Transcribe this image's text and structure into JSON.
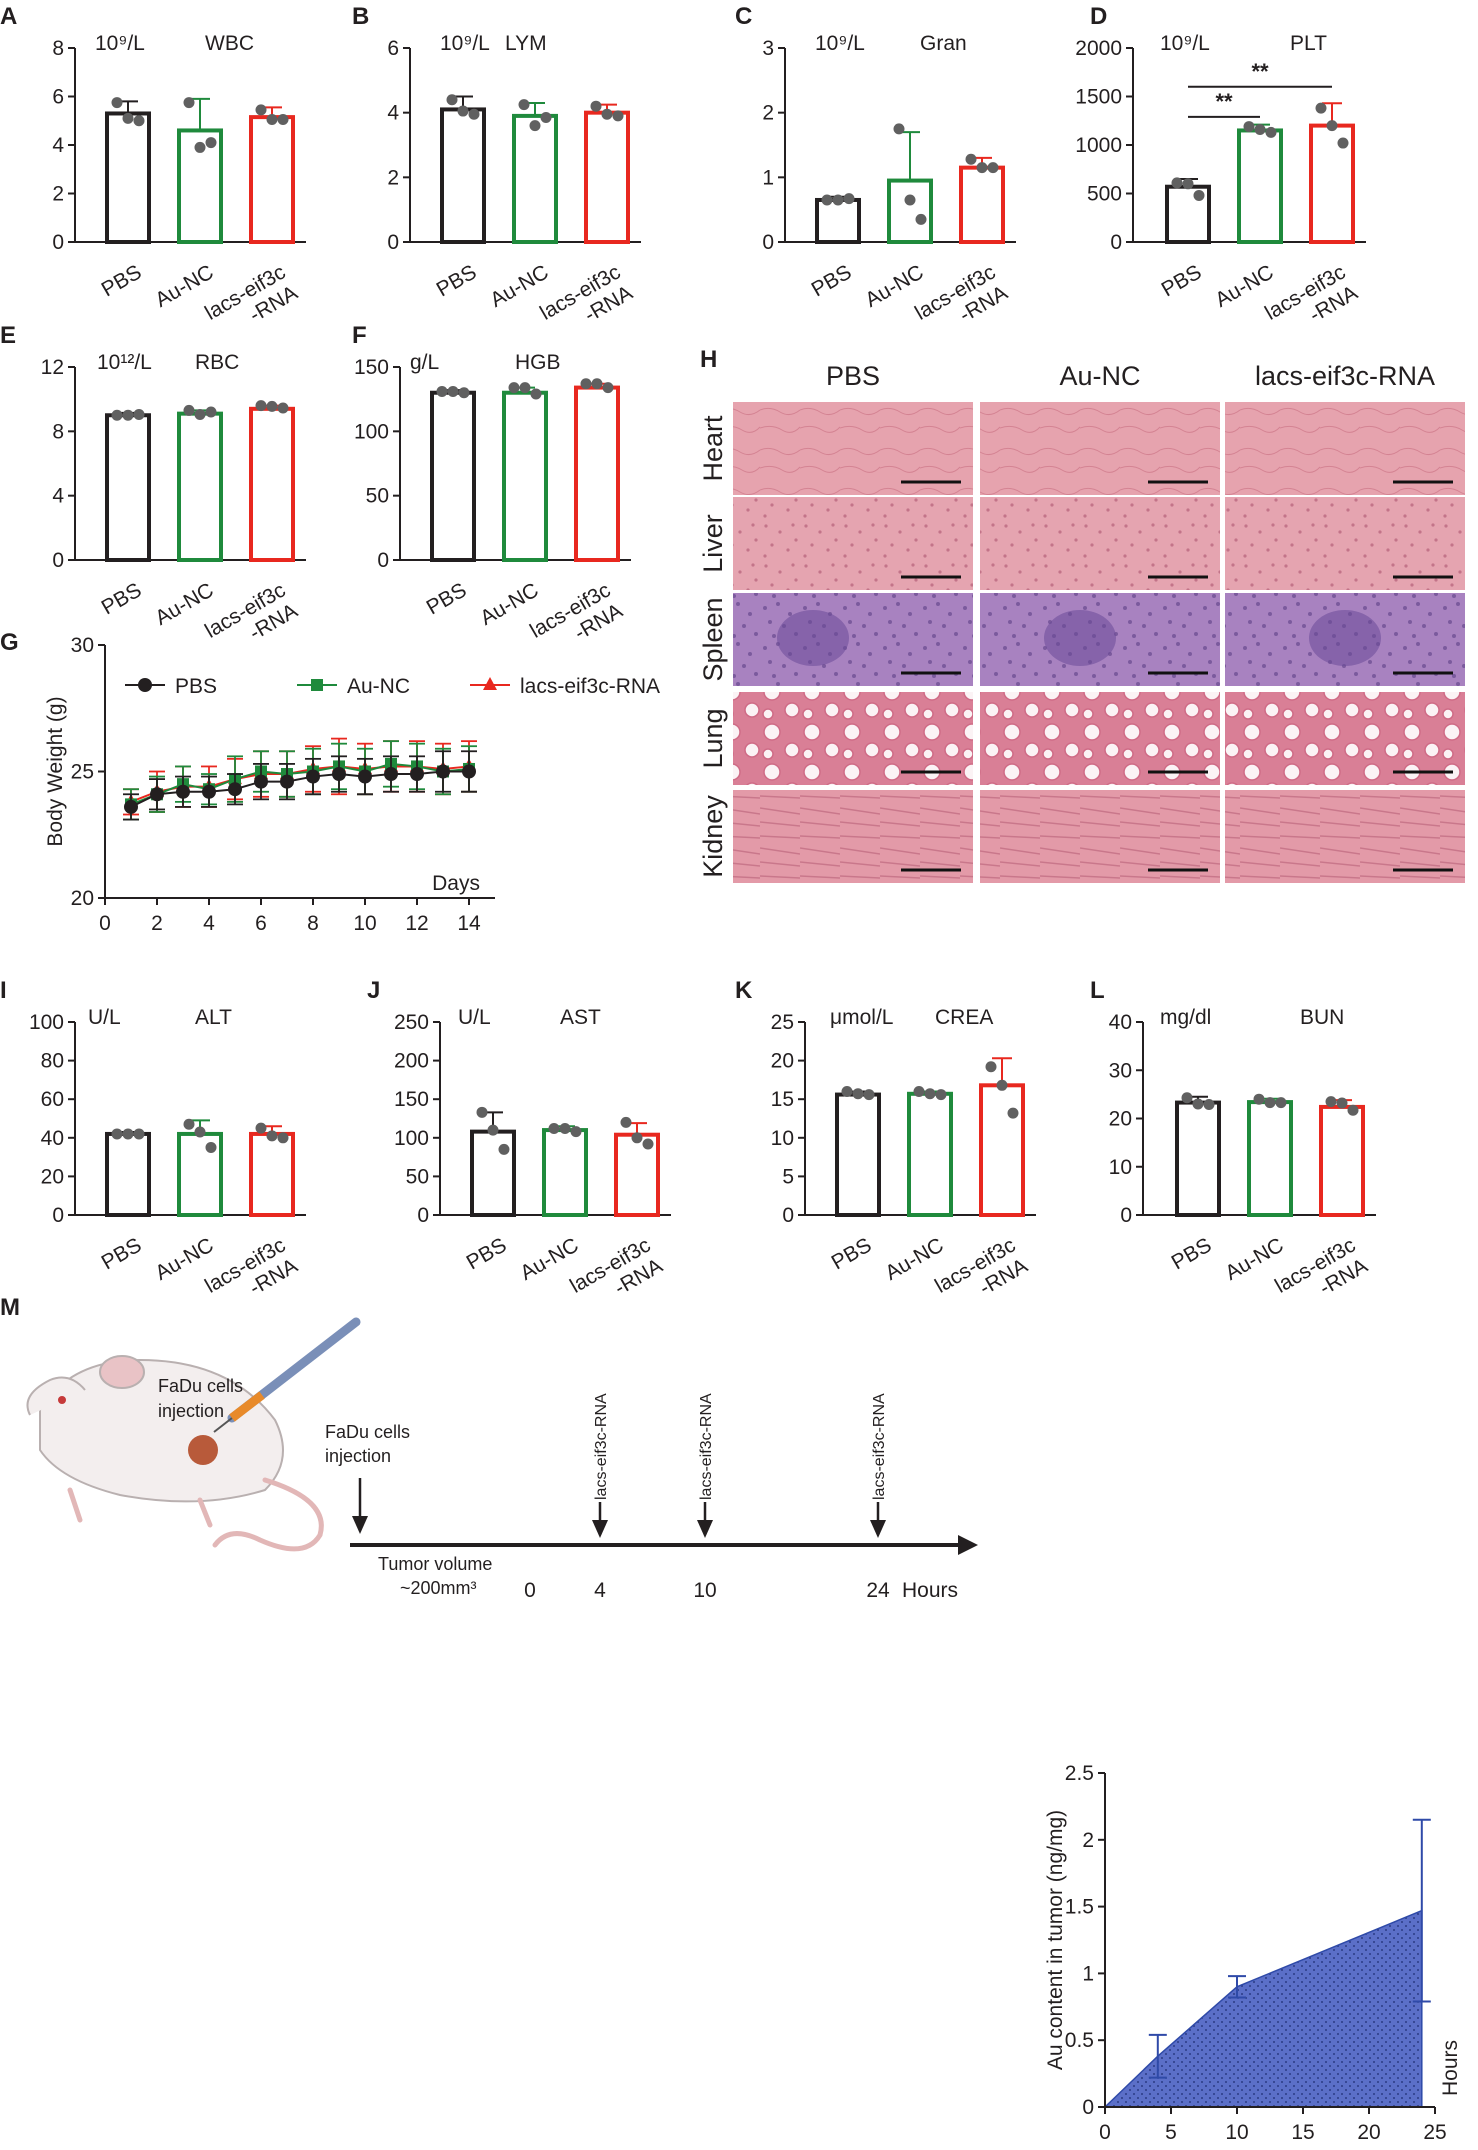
{
  "colors": {
    "pbs": "#231f20",
    "au": "#1f8a3c",
    "lacs": "#e8281f",
    "dot": "#606060",
    "area_fill": "#5b6fc8",
    "area_edge": "#2f4aa8",
    "tissue_pink": "#e9a0ad",
    "spleen_purple": "#9b78b8"
  },
  "chart_data": [
    {
      "id": "A",
      "panel": "A",
      "type": "bar",
      "unit": "10⁹/L",
      "title": "WBC",
      "categories": [
        "PBS",
        "Au-NC",
        "lacs-eif3c\n-RNA"
      ],
      "ylim": [
        0,
        8
      ],
      "yticks": [
        0,
        2,
        4,
        6,
        8
      ],
      "values": [
        5.3,
        4.6,
        5.15
      ],
      "errors": [
        0.5,
        1.3,
        0.4
      ],
      "points": [
        [
          5.75,
          5.1,
          5.0
        ],
        [
          5.75,
          3.9,
          4.1
        ],
        [
          5.45,
          5.05,
          5.05
        ]
      ]
    },
    {
      "id": "B",
      "panel": "B",
      "type": "bar",
      "unit": "10⁹/L",
      "title": "LYM",
      "categories": [
        "PBS",
        "Au-NC",
        "lacs-eif3c\n-RNA"
      ],
      "ylim": [
        0,
        6
      ],
      "yticks": [
        0,
        2,
        4,
        6
      ],
      "values": [
        4.1,
        3.9,
        4.0
      ],
      "errors": [
        0.4,
        0.4,
        0.25
      ],
      "points": [
        [
          4.4,
          4.05,
          3.95
        ],
        [
          4.25,
          3.6,
          3.85
        ],
        [
          4.2,
          3.95,
          3.9
        ]
      ]
    },
    {
      "id": "C",
      "panel": "C",
      "type": "bar",
      "unit": "10⁹/L",
      "title": "Gran",
      "categories": [
        "PBS",
        "Au-NC",
        "lacs-eif3c\n-RNA"
      ],
      "ylim": [
        0,
        3
      ],
      "yticks": [
        0,
        1,
        2,
        3
      ],
      "values": [
        0.65,
        0.95,
        1.15
      ],
      "errors": [
        0.05,
        0.75,
        0.15
      ],
      "points": [
        [
          0.65,
          0.65,
          0.67
        ],
        [
          1.75,
          0.65,
          0.35
        ],
        [
          1.28,
          1.15,
          1.15
        ]
      ]
    },
    {
      "id": "D",
      "panel": "D",
      "type": "bar",
      "unit": "10⁹/L",
      "title": "PLT",
      "categories": [
        "PBS",
        "Au-NC",
        "lacs-eif3c\n-RNA"
      ],
      "ylim": [
        0,
        2000
      ],
      "yticks": [
        0,
        500,
        1000,
        1500,
        2000
      ],
      "values": [
        570,
        1150,
        1200
      ],
      "errors": [
        80,
        60,
        230
      ],
      "points": [
        [
          610,
          600,
          480
        ],
        [
          1190,
          1160,
          1130
        ],
        [
          1380,
          1200,
          1020
        ]
      ],
      "sig": [
        {
          "from": 0,
          "to": 1,
          "label": "**",
          "y": 1290
        },
        {
          "from": 0,
          "to": 2,
          "label": "**",
          "y": 1600
        }
      ]
    },
    {
      "id": "E",
      "panel": "E",
      "type": "bar",
      "unit": "10¹²/L",
      "title": "RBC",
      "categories": [
        "PBS",
        "Au-NC",
        "lacs-eif3c\n-RNA"
      ],
      "ylim": [
        0,
        12
      ],
      "yticks": [
        0,
        4,
        8,
        12
      ],
      "values": [
        9.0,
        9.1,
        9.4
      ],
      "errors": [
        0.15,
        0.2,
        0.2
      ],
      "points": [
        [
          9.0,
          9.0,
          9.05
        ],
        [
          9.3,
          9.05,
          9.2
        ],
        [
          9.6,
          9.55,
          9.45
        ]
      ]
    },
    {
      "id": "F",
      "panel": "F",
      "type": "bar",
      "unit": "g/L",
      "title": "HGB",
      "categories": [
        "PBS",
        "Au-NC",
        "lacs-eif3c\n-RNA"
      ],
      "ylim": [
        0,
        150
      ],
      "yticks": [
        0,
        50,
        100,
        150
      ],
      "values": [
        130,
        130,
        134
      ],
      "errors": [
        2,
        4,
        3
      ],
      "points": [
        [
          131,
          131,
          130
        ],
        [
          134,
          134,
          129
        ],
        [
          137,
          137,
          134
        ]
      ]
    },
    {
      "id": "G",
      "panel": "G",
      "type": "line",
      "xlabel": "Days",
      "ylabel": "Body Weight (g)",
      "xlim": [
        0,
        15
      ],
      "ylim": [
        20,
        30
      ],
      "xticks": [
        0,
        2,
        4,
        6,
        8,
        10,
        12,
        14
      ],
      "yticks": [
        20,
        25,
        30
      ],
      "x": [
        1,
        2,
        3,
        4,
        5,
        6,
        7,
        8,
        9,
        10,
        11,
        12,
        13,
        14
      ],
      "series": [
        {
          "name": "PBS",
          "marker": "circle",
          "values": [
            23.6,
            24.1,
            24.2,
            24.2,
            24.3,
            24.6,
            24.6,
            24.8,
            24.9,
            24.8,
            24.9,
            24.9,
            25.0,
            25.0
          ],
          "errors": [
            0.5,
            0.6,
            0.6,
            0.6,
            0.6,
            0.7,
            0.7,
            0.7,
            0.7,
            0.7,
            0.7,
            0.7,
            0.8,
            0.8
          ]
        },
        {
          "name": "Au-NC",
          "marker": "square",
          "values": [
            23.7,
            24.1,
            24.5,
            24.3,
            24.7,
            25.0,
            24.9,
            25.0,
            25.2,
            25.0,
            25.3,
            25.2,
            25.0,
            25.1
          ],
          "errors": [
            0.6,
            0.7,
            0.7,
            0.6,
            0.9,
            0.8,
            0.9,
            0.9,
            0.9,
            0.9,
            0.9,
            0.9,
            0.9,
            0.9
          ]
        },
        {
          "name": "lacs-eif3c-RNA",
          "marker": "triangle",
          "values": [
            23.8,
            24.2,
            24.4,
            24.4,
            24.7,
            24.9,
            24.9,
            25.1,
            25.2,
            25.1,
            25.2,
            25.2,
            25.1,
            25.2
          ],
          "errors": [
            0.5,
            0.8,
            0.8,
            0.8,
            0.8,
            0.9,
            0.9,
            0.9,
            1.1,
            1.0,
            1.0,
            1.0,
            1.0,
            1.0
          ]
        }
      ]
    },
    {
      "id": "I",
      "panel": "I",
      "type": "bar",
      "unit": "U/L",
      "title": "ALT",
      "categories": [
        "PBS",
        "Au-NC",
        "lacs-eif3c\n-RNA"
      ],
      "ylim": [
        0,
        100
      ],
      "yticks": [
        0,
        20,
        40,
        60,
        80,
        100
      ],
      "values": [
        42,
        42,
        42
      ],
      "errors": [
        1,
        7,
        4
      ],
      "points": [
        [
          42,
          42,
          42
        ],
        [
          47,
          43,
          35
        ],
        [
          45,
          41,
          40
        ]
      ]
    },
    {
      "id": "J",
      "panel": "J",
      "type": "bar",
      "unit": "U/L",
      "title": "AST",
      "categories": [
        "PBS",
        "Au-NC",
        "lacs-eif3c\n-RNA"
      ],
      "ylim": [
        0,
        250
      ],
      "yticks": [
        0,
        50,
        100,
        150,
        200,
        250
      ],
      "values": [
        108,
        110,
        104
      ],
      "errors": [
        25,
        5,
        15
      ],
      "points": [
        [
          133,
          110,
          85
        ],
        [
          112,
          112,
          108
        ],
        [
          120,
          100,
          92
        ]
      ]
    },
    {
      "id": "K",
      "panel": "K",
      "type": "bar",
      "unit": "μmol/L",
      "title": "CREA",
      "categories": [
        "PBS",
        "Au-NC",
        "lacs-eif3c\n-RNA"
      ],
      "ylim": [
        0,
        25
      ],
      "yticks": [
        0,
        5,
        10,
        15,
        20,
        25
      ],
      "values": [
        15.6,
        15.7,
        16.8
      ],
      "errors": [
        0.4,
        0.3,
        3.5
      ],
      "points": [
        [
          16.0,
          15.7,
          15.6
        ],
        [
          16.0,
          15.7,
          15.6
        ],
        [
          19.2,
          16.8,
          13.2
        ]
      ]
    },
    {
      "id": "L",
      "panel": "L",
      "type": "bar",
      "unit": "mg/dl",
      "title": "BUN",
      "categories": [
        "PBS",
        "Au-NC",
        "lacs-eif3c\n-RNA"
      ],
      "ylim": [
        0,
        40
      ],
      "yticks": [
        0,
        10,
        20,
        30,
        40
      ],
      "values": [
        23.3,
        23.4,
        22.4
      ],
      "errors": [
        1.2,
        0.7,
        1.4
      ],
      "points": [
        [
          24.3,
          23.0,
          22.9
        ],
        [
          24.0,
          23.3,
          23.3
        ],
        [
          23.5,
          23.2,
          21.7
        ]
      ]
    },
    {
      "id": "M2",
      "panel": "M",
      "type": "area",
      "xlabel": "Hours",
      "ylabel": "Au content in tumor (ng/mg)",
      "xlim": [
        0,
        25
      ],
      "ylim": [
        0,
        2.5
      ],
      "xticks": [
        0,
        5,
        10,
        15,
        20,
        25
      ],
      "yticks": [
        0,
        0.5,
        1.0,
        1.5,
        2.0,
        2.5
      ],
      "x": [
        0,
        4,
        10,
        24
      ],
      "values": [
        0.0,
        0.38,
        0.9,
        1.47
      ],
      "errors": [
        0,
        0.16,
        0.08,
        0.68
      ]
    }
  ],
  "histology": {
    "panel": "H",
    "columns": [
      "PBS",
      "Au-NC",
      "lacs-eif3c-RNA"
    ],
    "rows": [
      "Heart",
      "Liver",
      "Spleen",
      "Lung",
      "Kidney"
    ]
  },
  "schematic": {
    "panel": "M",
    "cells_label_1": "FaDu cells",
    "cells_label_2": "injection",
    "injection_label_1": "FaDu cells",
    "injection_label_2": "injection",
    "tumor_label_1": "Tumor volume",
    "tumor_label_2": "~200mm³",
    "timeline_ticks": [
      "0",
      "4",
      "10",
      "24"
    ],
    "timeline_unit": "Hours",
    "dose_labels": [
      "lacs-eif3c-RNA",
      "lacs-eif3c-RNA",
      "lacs-eif3c-RNA"
    ]
  }
}
